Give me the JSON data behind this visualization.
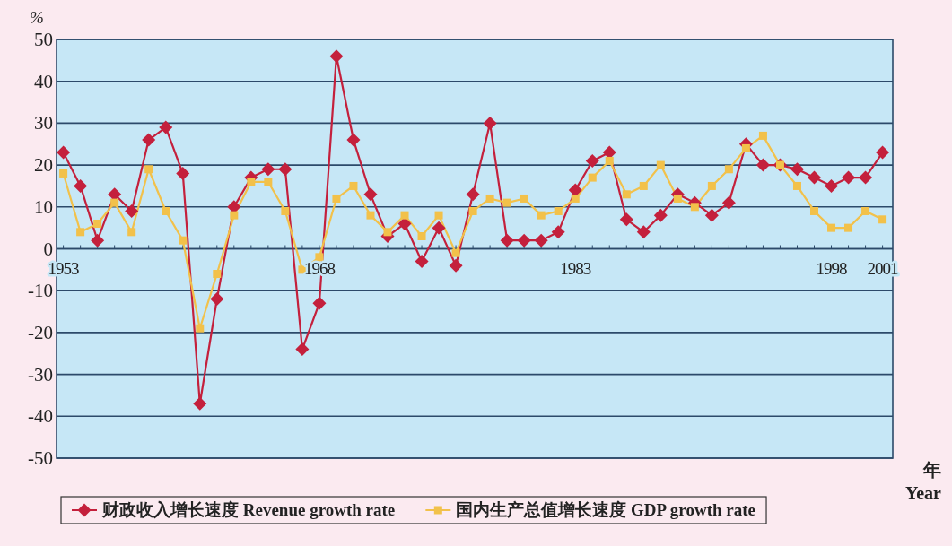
{
  "chart_data": {
    "type": "line",
    "ylabel": "%",
    "xlabel": "年 Year",
    "x": [
      1953,
      1954,
      1955,
      1956,
      1957,
      1958,
      1959,
      1960,
      1961,
      1962,
      1963,
      1964,
      1965,
      1966,
      1967,
      1968,
      1969,
      1970,
      1971,
      1972,
      1973,
      1974,
      1975,
      1976,
      1977,
      1978,
      1979,
      1980,
      1981,
      1982,
      1983,
      1984,
      1985,
      1986,
      1987,
      1988,
      1989,
      1990,
      1991,
      1992,
      1993,
      1994,
      1995,
      1996,
      1997,
      1998,
      1999,
      2000,
      2001
    ],
    "series": [
      {
        "name": "财政收入增长速度 Revenue growth rate",
        "color": "#c4203c",
        "marker": "diamond",
        "values": [
          23,
          15,
          2,
          13,
          9,
          26,
          29,
          18,
          -37,
          -12,
          10,
          17,
          19,
          19,
          -24,
          -13,
          46,
          26,
          13,
          3,
          6,
          -3,
          5,
          -4,
          13,
          30,
          2,
          2,
          2,
          4,
          14,
          21,
          23,
          7,
          4,
          8,
          13,
          11,
          8,
          11,
          25,
          20,
          20,
          19,
          17,
          15,
          17,
          17,
          23
        ]
      },
      {
        "name": "国内生产总值增长速度 GDP growth rate",
        "color": "#f2c14a",
        "marker": "square",
        "values": [
          18,
          4,
          6,
          11,
          4,
          19,
          9,
          2,
          -19,
          -6,
          8,
          16,
          16,
          9,
          -5,
          -2,
          12,
          15,
          8,
          4,
          8,
          3,
          8,
          -1,
          9,
          12,
          11,
          12,
          8,
          9,
          12,
          17,
          21,
          13,
          15,
          20,
          12,
          10,
          15,
          19,
          24,
          27,
          20,
          15,
          9,
          5,
          5,
          9,
          7
        ]
      }
    ],
    "xlim": [
      1952.6,
      2001.6
    ],
    "xticks": [
      1953,
      1968,
      1983,
      1998,
      2001
    ],
    "ylim": [
      -50,
      50
    ],
    "yticks": [
      -50,
      -40,
      -30,
      -20,
      -10,
      0,
      10,
      20,
      30,
      40,
      50
    ],
    "grid": "y",
    "legend": "bottom",
    "line_style": "solid"
  }
}
